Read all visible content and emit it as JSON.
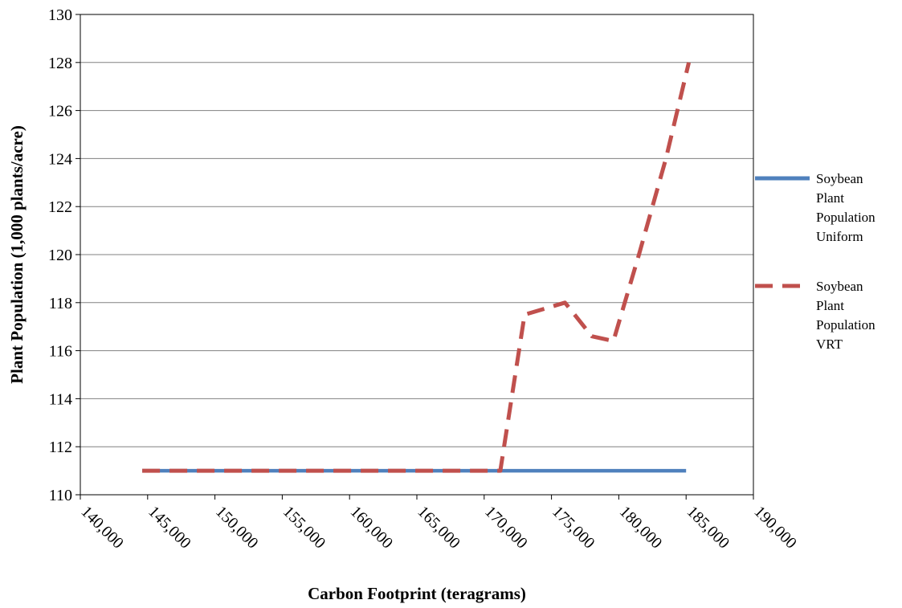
{
  "chart_data": {
    "type": "line",
    "title": "",
    "xlabel": "Carbon Footprint (teragrams)",
    "ylabel": "Plant Population (1,000 plants/acre)",
    "xlim": [
      140000,
      190000
    ],
    "ylim": [
      110,
      130
    ],
    "x_ticks": [
      140000,
      145000,
      150000,
      155000,
      160000,
      165000,
      170000,
      175000,
      180000,
      185000,
      190000
    ],
    "x_tick_labels": [
      "140,000",
      "145,000",
      "150,000",
      "155,000",
      "160,000",
      "165,000",
      "170,000",
      "175,000",
      "180,000",
      "185,000",
      "190,000"
    ],
    "y_ticks": [
      110,
      112,
      114,
      116,
      118,
      120,
      122,
      124,
      126,
      128,
      130
    ],
    "y_tick_labels": [
      "110",
      "112",
      "114",
      "116",
      "118",
      "120",
      "122",
      "124",
      "126",
      "128",
      "130"
    ],
    "grid": "horizontal",
    "legend_position": "right",
    "series": [
      {
        "name": "Soybean Plant Population Uniform",
        "legend_lines": [
          "Soybean",
          "Plant",
          "Population",
          "Uniform"
        ],
        "color": "#4F81BD",
        "style": "solid",
        "x": [
          144600,
          185000
        ],
        "y": [
          111,
          111
        ]
      },
      {
        "name": "Soybean Plant Population VRT",
        "legend_lines": [
          "Soybean",
          "Plant",
          "Population",
          "VRT"
        ],
        "color": "#C0504D",
        "style": "dashed",
        "x": [
          144600,
          171200,
          173000,
          176000,
          178000,
          179600,
          181500,
          183500,
          185200
        ],
        "y": [
          111,
          111,
          117.5,
          118,
          116.6,
          116.4,
          120,
          124,
          128
        ]
      }
    ]
  }
}
